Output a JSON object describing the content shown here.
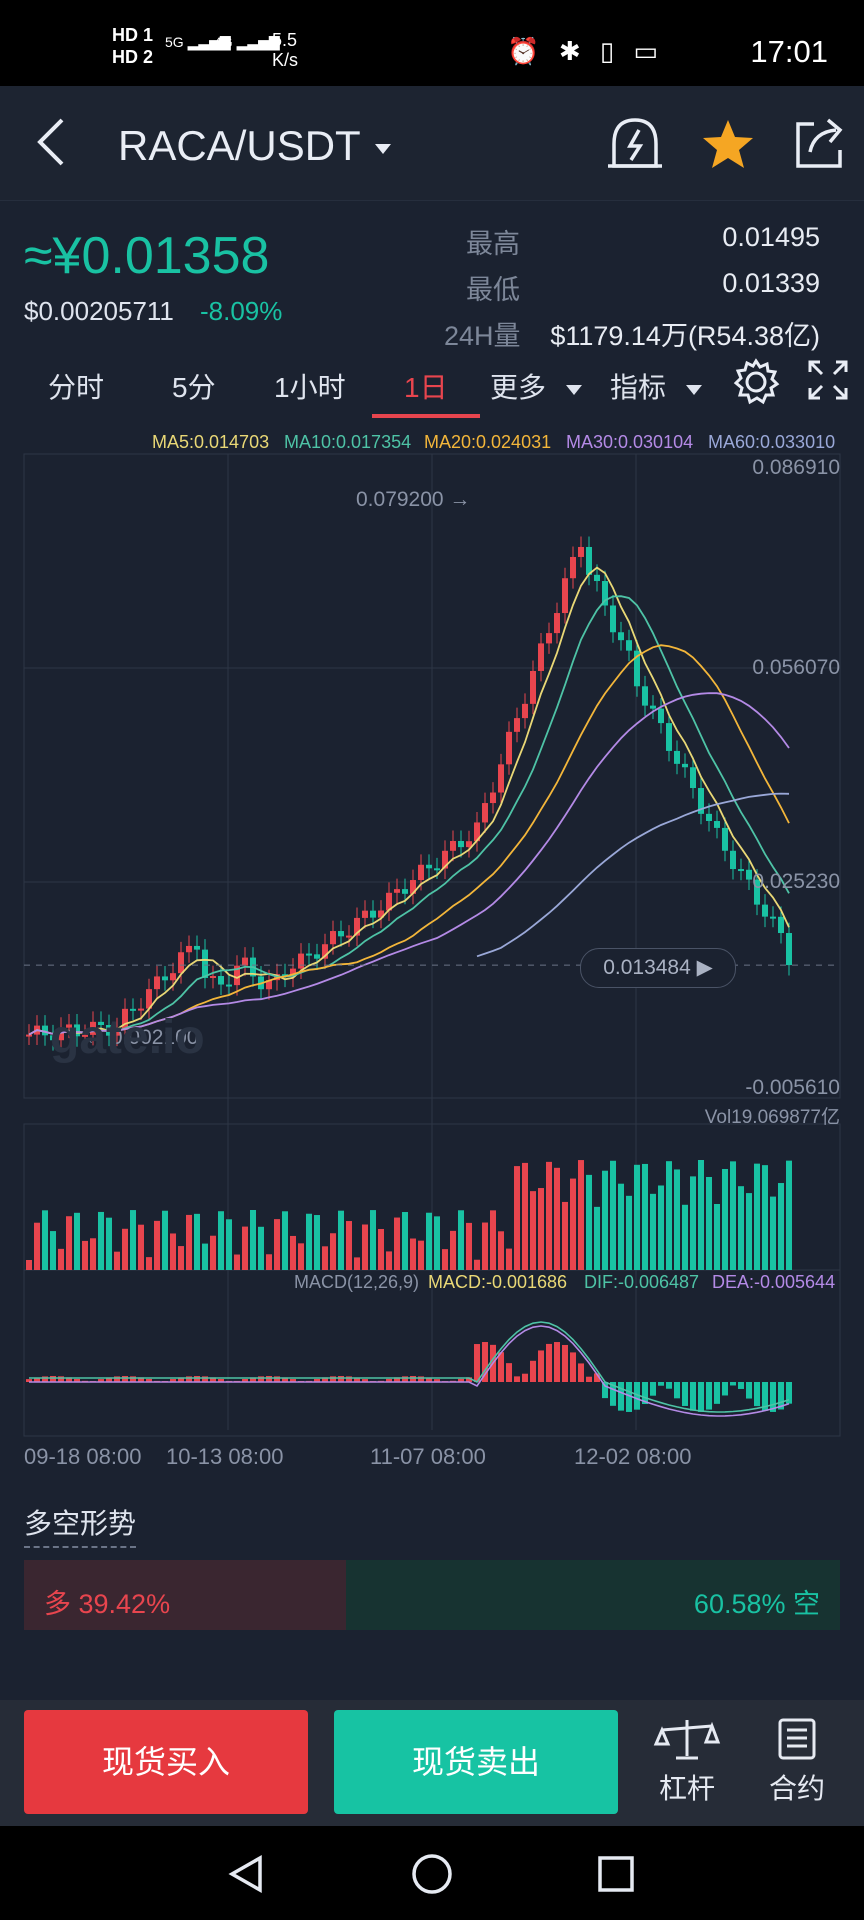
{
  "status_bar": {
    "sim": "HD 1\nHD 2",
    "signal1": "5G",
    "signal2": "4G",
    "net_speed": "5.5",
    "net_unit": "K/s",
    "time": "17:01"
  },
  "header": {
    "pair": "RACA/USDT",
    "icons": [
      "back-arrow-icon",
      "price-alert-icon",
      "star-icon",
      "share-icon"
    ],
    "star_color": "#f5a623"
  },
  "ticker": {
    "price": "≈¥0.01358",
    "usd_price": "$0.00205711",
    "change": "-8.09%",
    "high_label": "最高",
    "high": "0.01495",
    "low_label": "最低",
    "low": "0.01339",
    "volume_label": "24H量",
    "volume": "$1179.14万(R54.38亿)"
  },
  "tabs": [
    "分时",
    "5分",
    "1小时",
    "1日",
    "更多",
    "指标"
  ],
  "active_tab": "1日",
  "ma_legend": [
    {
      "label": "MA5:0.014703",
      "color": "#e9d876"
    },
    {
      "label": "MA10:0.017354",
      "color": "#4ec3a6"
    },
    {
      "label": "MA20:0.024031",
      "color": "#f3b63a"
    },
    {
      "label": "MA30:0.030104",
      "color": "#b48ae6"
    },
    {
      "label": "MA60:0.033010",
      "color": "#9aa8d8"
    }
  ],
  "chart_data": {
    "type": "candlestick",
    "y_ticks": [
      "0.086910",
      "0.056070",
      "0.025230",
      "-0.005610"
    ],
    "ylim": [
      -0.00561,
      0.08691
    ],
    "x_labels": [
      "09-18 08:00",
      "10-13 08:00",
      "11-07 08:00",
      "12-02 08:00"
    ],
    "max_marker": "0.079200",
    "min_marker": "0.002100",
    "current_price": "0.013484",
    "volume_label": "Vol19.069877亿",
    "macd_legend": {
      "title": "MACD(12,26,9)",
      "macd": "MACD:-0.001686",
      "dif": "DIF:-0.006487",
      "dea": "DEA:-0.005644"
    },
    "up_color": "#e8454e",
    "down_color": "#19c2a3",
    "watermark": "gate.io"
  },
  "sentiment": {
    "title": "多空形势",
    "long": "多 39.42%",
    "short": "60.58% 空",
    "long_ratio": 0.3942
  },
  "actions": {
    "buy": "现货买入",
    "sell": "现货卖出",
    "leverage": "杠杆",
    "contract": "合约"
  }
}
